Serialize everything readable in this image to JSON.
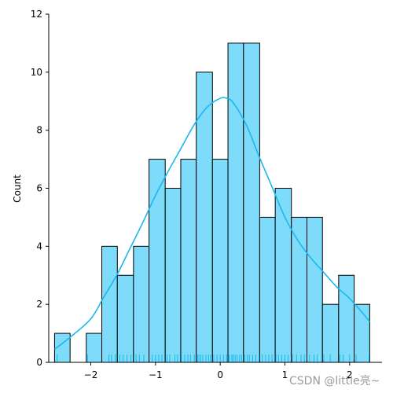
{
  "chart_data": {
    "type": "histogram",
    "xlabel": "",
    "ylabel": "Count",
    "xlim": [
      -2.65,
      2.5
    ],
    "ylim": [
      0,
      12
    ],
    "xticks": [
      -2,
      -1,
      0,
      1,
      2
    ],
    "xtick_labels": [
      "−2",
      "−1",
      "0",
      "1",
      "2"
    ],
    "yticks": [
      0,
      2,
      4,
      6,
      8,
      10,
      12
    ],
    "grid": false,
    "bins": [
      {
        "x0": -2.56,
        "x1": -2.32,
        "count": 1
      },
      {
        "x0": -2.32,
        "x1": -2.07,
        "count": 0
      },
      {
        "x0": -2.07,
        "x1": -1.83,
        "count": 1
      },
      {
        "x0": -1.83,
        "x1": -1.59,
        "count": 4
      },
      {
        "x0": -1.59,
        "x1": -1.34,
        "count": 3
      },
      {
        "x0": -1.34,
        "x1": -1.1,
        "count": 4
      },
      {
        "x0": -1.1,
        "x1": -0.85,
        "count": 7
      },
      {
        "x0": -0.85,
        "x1": -0.61,
        "count": 6
      },
      {
        "x0": -0.61,
        "x1": -0.37,
        "count": 7
      },
      {
        "x0": -0.37,
        "x1": -0.12,
        "count": 10
      },
      {
        "x0": -0.12,
        "x1": 0.12,
        "count": 7
      },
      {
        "x0": 0.12,
        "x1": 0.36,
        "count": 11
      },
      {
        "x0": 0.36,
        "x1": 0.61,
        "count": 11
      },
      {
        "x0": 0.61,
        "x1": 0.85,
        "count": 5
      },
      {
        "x0": 0.85,
        "x1": 1.1,
        "count": 6
      },
      {
        "x0": 1.1,
        "x1": 1.34,
        "count": 5
      },
      {
        "x0": 1.34,
        "x1": 1.58,
        "count": 5
      },
      {
        "x0": 1.58,
        "x1": 1.83,
        "count": 2
      },
      {
        "x0": 1.83,
        "x1": 2.07,
        "count": 3
      },
      {
        "x0": 2.07,
        "x1": 2.31,
        "count": 2
      }
    ],
    "kde": {
      "x": [
        -2.56,
        -2.3,
        -2.0,
        -1.8,
        -1.6,
        -1.4,
        -1.2,
        -1.0,
        -0.8,
        -0.6,
        -0.4,
        -0.2,
        0.0,
        0.1,
        0.2,
        0.4,
        0.6,
        0.8,
        1.0,
        1.2,
        1.4,
        1.6,
        1.8,
        2.0,
        2.2,
        2.31
      ],
      "y": [
        0.45,
        0.9,
        1.5,
        2.25,
        3.0,
        3.9,
        4.8,
        5.75,
        6.6,
        7.4,
        8.2,
        8.8,
        9.1,
        9.1,
        8.95,
        8.2,
        7.1,
        6.05,
        5.0,
        4.2,
        3.6,
        3.1,
        2.6,
        2.2,
        1.7,
        1.4
      ]
    },
    "rug": [
      -2.52,
      -2.05,
      -1.72,
      -1.68,
      -1.62,
      -1.55,
      -1.5,
      -1.44,
      -1.38,
      -1.3,
      -1.25,
      -1.18,
      -1.05,
      -1.0,
      -0.95,
      -0.9,
      -0.82,
      -0.78,
      -0.7,
      -0.66,
      -0.6,
      -0.55,
      -0.5,
      -0.46,
      -0.4,
      -0.35,
      -0.33,
      -0.3,
      -0.27,
      -0.22,
      -0.18,
      -0.15,
      -0.1,
      -0.05,
      0.0,
      0.05,
      0.1,
      0.14,
      0.18,
      0.2,
      0.23,
      0.26,
      0.3,
      0.33,
      0.38,
      0.42,
      0.45,
      0.5,
      0.55,
      0.6,
      0.65,
      0.7,
      0.75,
      0.8,
      0.86,
      0.9,
      0.95,
      1.0,
      1.05,
      1.12,
      1.18,
      1.25,
      1.3,
      1.38,
      1.45,
      1.5,
      1.6,
      1.7,
      1.85,
      1.9,
      2.0,
      2.1,
      2.3
    ],
    "colors": {
      "bar_fill": "#7fdbfa",
      "bar_edge": "#000000",
      "kde_line": "#1ab8f0",
      "rug": "#1ab8f0"
    }
  },
  "watermark": "CSDN @little亮~"
}
